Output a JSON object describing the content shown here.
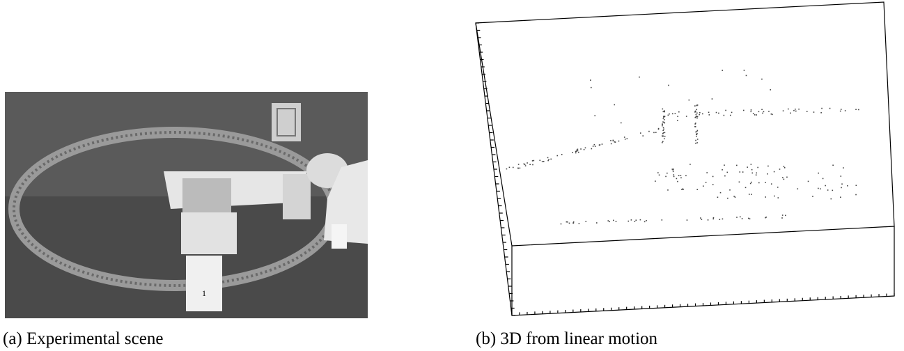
{
  "figure": {
    "panels": [
      {
        "caption": "(a) Experimental scene"
      },
      {
        "caption": "(b) 3D from linear motion"
      }
    ]
  }
}
